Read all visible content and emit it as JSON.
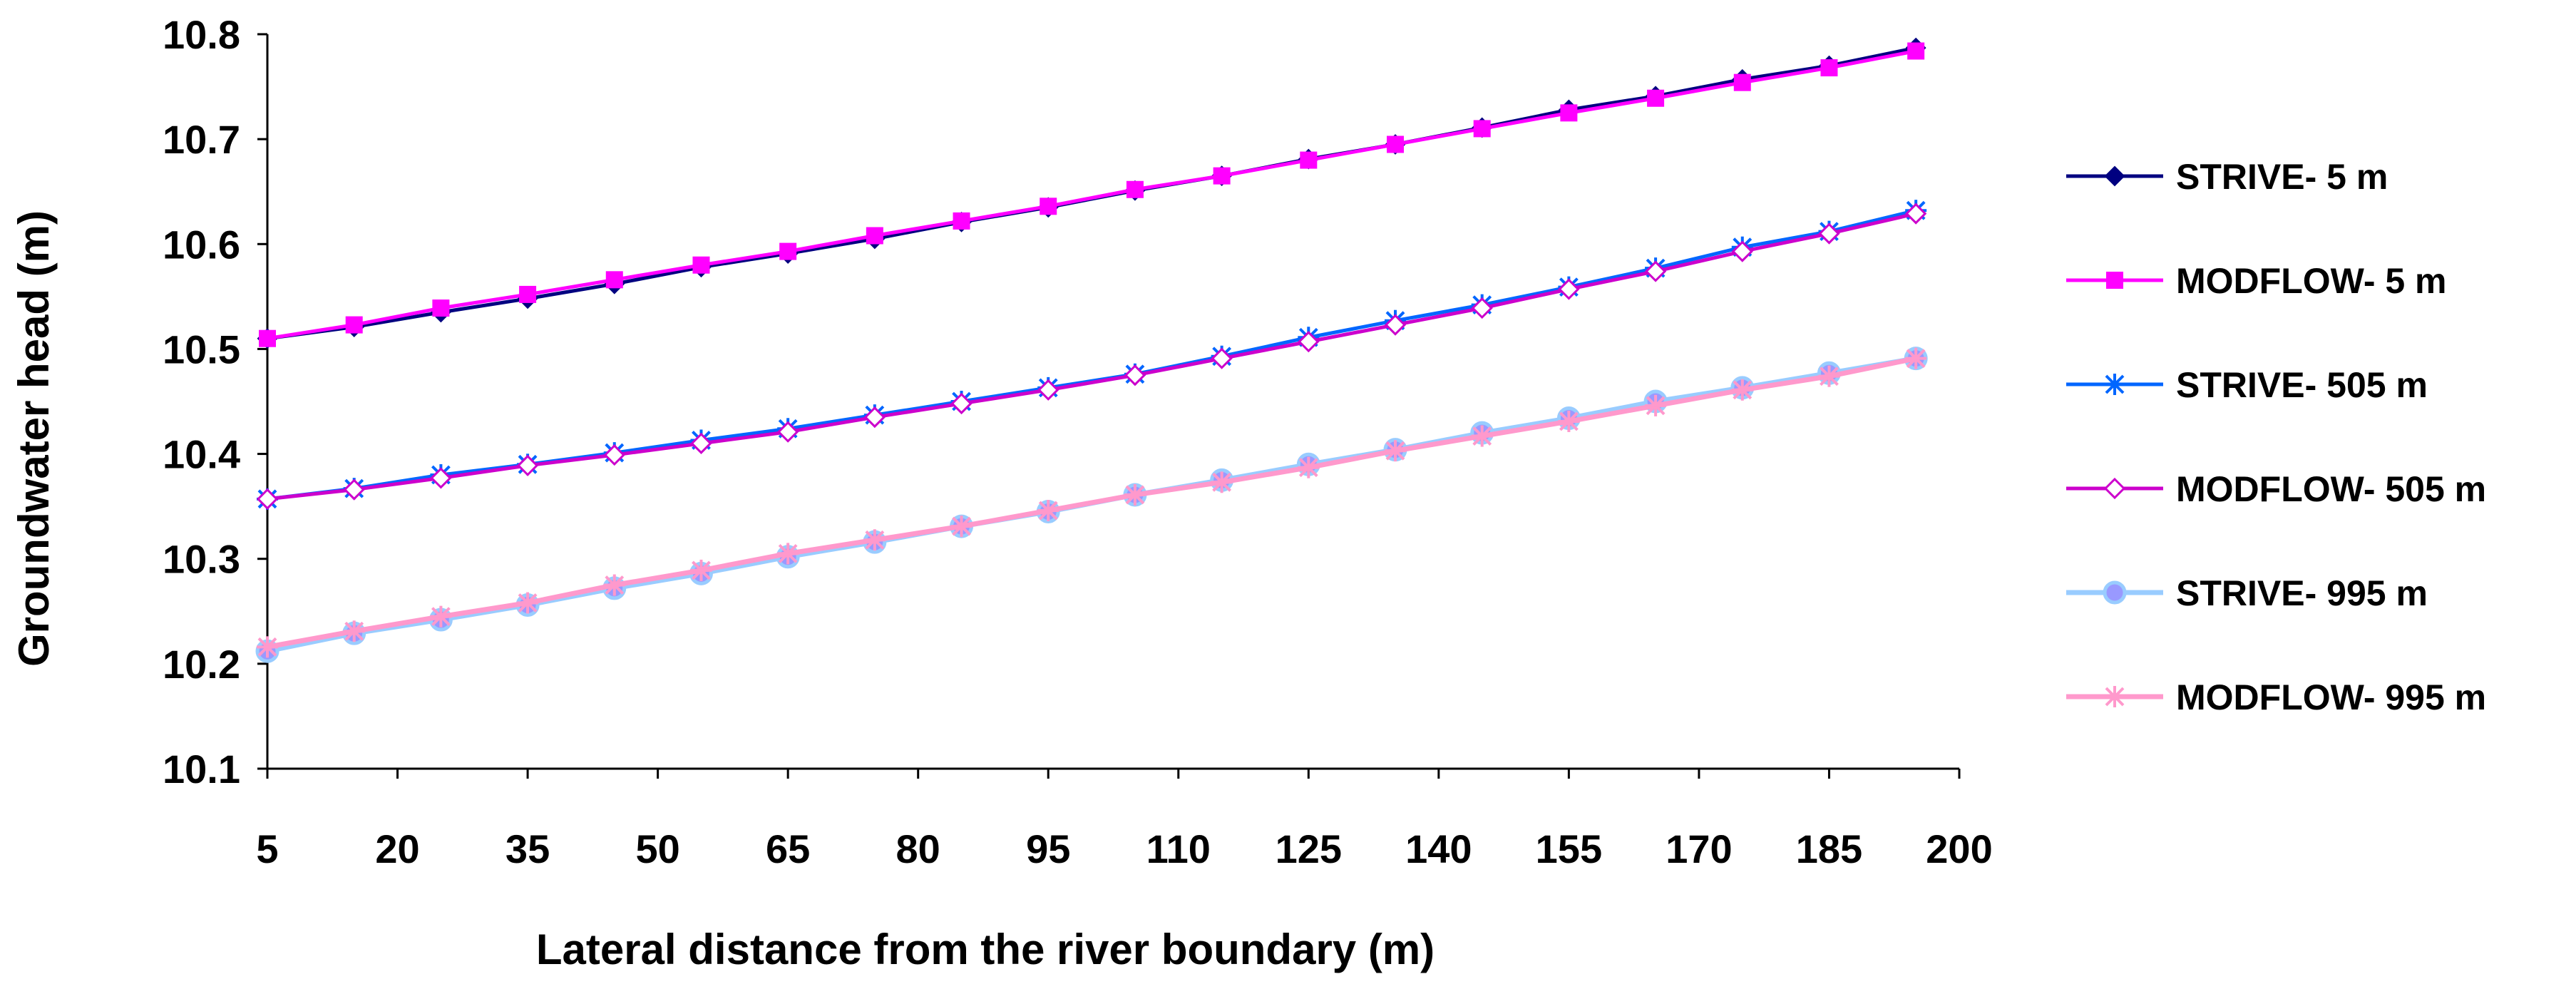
{
  "chart_data": {
    "type": "line",
    "title": "",
    "xlabel": "Lateral distance from the river boundary (m)",
    "ylabel": "Groundwater head (m)",
    "xlim": [
      5,
      200
    ],
    "ylim": [
      10.1,
      10.8
    ],
    "x_tick_labels": [
      "5",
      "20",
      "35",
      "50",
      "65",
      "80",
      "95",
      "110",
      "125",
      "140",
      "155",
      "170",
      "185",
      "200"
    ],
    "y_tick_labels": [
      "10.1",
      "10.2",
      "10.3",
      "10.4",
      "10.5",
      "10.6",
      "10.7",
      "10.8"
    ],
    "grid": false,
    "legend_position": "right",
    "x": [
      5,
      15,
      25,
      35,
      45,
      55,
      65,
      75,
      85,
      95,
      105,
      115,
      125,
      135,
      145,
      155,
      165,
      175,
      185,
      195
    ],
    "series": [
      {
        "name": "STRIVE- 5 m",
        "color": "#000080",
        "marker": "diamond",
        "values": [
          10.51,
          10.521,
          10.535,
          10.548,
          10.562,
          10.578,
          10.591,
          10.605,
          10.621,
          10.635,
          10.651,
          10.665,
          10.681,
          10.695,
          10.711,
          10.728,
          10.741,
          10.757,
          10.77,
          10.787
        ]
      },
      {
        "name": "MODFLOW- 5 m",
        "color": "#ff00ff",
        "marker": "square",
        "values": [
          10.51,
          10.523,
          10.539,
          10.552,
          10.566,
          10.58,
          10.593,
          10.608,
          10.622,
          10.636,
          10.652,
          10.665,
          10.68,
          10.695,
          10.71,
          10.725,
          10.739,
          10.754,
          10.768,
          10.784
        ]
      },
      {
        "name": "STRIVE- 505 m",
        "color": "#0066ff",
        "marker": "asterisk",
        "values": [
          10.357,
          10.367,
          10.38,
          10.39,
          10.401,
          10.413,
          10.424,
          10.437,
          10.45,
          10.463,
          10.476,
          10.493,
          10.511,
          10.527,
          10.542,
          10.559,
          10.577,
          10.597,
          10.612,
          10.632
        ]
      },
      {
        "name": "MODFLOW- 505 m",
        "color": "#cc00cc",
        "marker": "open-diamond",
        "values": [
          10.357,
          10.366,
          10.377,
          10.389,
          10.399,
          10.41,
          10.421,
          10.435,
          10.448,
          10.461,
          10.475,
          10.491,
          10.507,
          10.523,
          10.539,
          10.557,
          10.574,
          10.593,
          10.61,
          10.629
        ]
      },
      {
        "name": "STRIVE- 995 m",
        "color": "#99ccff",
        "marker": "circle",
        "values": [
          10.212,
          10.229,
          10.242,
          10.256,
          10.272,
          10.286,
          10.302,
          10.316,
          10.331,
          10.345,
          10.361,
          10.375,
          10.39,
          10.404,
          10.42,
          10.434,
          10.45,
          10.463,
          10.477,
          10.491
        ]
      },
      {
        "name": "MODFLOW- 995 m",
        "color": "#ff99cc",
        "marker": "asterisk",
        "values": [
          10.216,
          10.231,
          10.245,
          10.258,
          10.275,
          10.289,
          10.305,
          10.318,
          10.331,
          10.346,
          10.361,
          10.373,
          10.387,
          10.403,
          10.417,
          10.431,
          10.446,
          10.461,
          10.474,
          10.491
        ]
      }
    ]
  }
}
